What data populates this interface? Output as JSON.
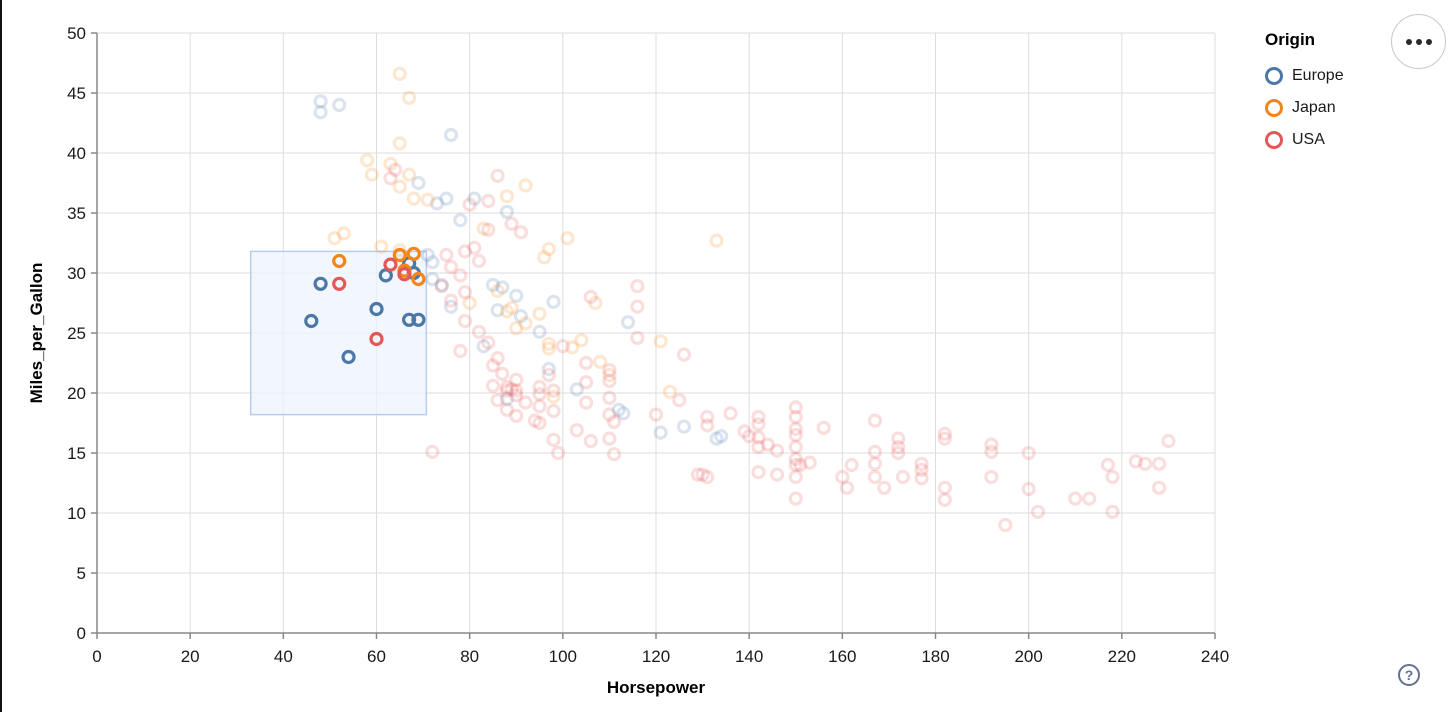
{
  "legend": {
    "title": "Origin",
    "items": [
      {
        "label": "Europe",
        "color": "#4c78a8"
      },
      {
        "label": "Japan",
        "color": "#f58518"
      },
      {
        "label": "USA",
        "color": "#e45756"
      }
    ]
  },
  "controls": {
    "menu_button": {
      "icon": "ellipsis-menu"
    },
    "help_button": {
      "glyph": "?"
    }
  },
  "chart_data": {
    "type": "scatter",
    "title": "",
    "xlabel": "Horsepower",
    "ylabel": "Miles_per_Gallon",
    "xlim": [
      0,
      240
    ],
    "ylim": [
      0,
      50
    ],
    "xticks": [
      0,
      20,
      40,
      60,
      80,
      100,
      120,
      140,
      160,
      180,
      200,
      220,
      240
    ],
    "yticks": [
      0,
      5,
      10,
      15,
      20,
      25,
      30,
      35,
      40,
      45,
      50
    ],
    "grid": true,
    "legend_position": "top-right",
    "point_style": "hollow-circle",
    "unselected_opacity": 0.2,
    "brush": {
      "x": [
        33,
        70.7
      ],
      "y": [
        18.2,
        31.8
      ],
      "fill": "#eef3fc",
      "fill_opacity": 0.75,
      "stroke": "#b9cdf0"
    },
    "series": [
      {
        "name": "Europe",
        "color": "#4c78a8",
        "selected": [
          [
            46,
            26
          ],
          [
            48,
            29.1
          ],
          [
            54,
            23
          ],
          [
            60,
            27
          ],
          [
            62,
            29.8
          ],
          [
            67,
            30.8
          ],
          [
            68,
            30
          ],
          [
            67,
            26.1
          ],
          [
            69,
            26.1
          ]
        ],
        "unselected": [
          [
            48,
            44.3
          ],
          [
            48,
            43.4
          ],
          [
            52,
            44
          ],
          [
            76,
            41.5
          ],
          [
            69,
            37.5
          ],
          [
            73,
            35.8
          ],
          [
            75,
            36.2
          ],
          [
            81,
            36.2
          ],
          [
            88,
            35.1
          ],
          [
            78,
            34.4
          ],
          [
            71,
            31.5
          ],
          [
            72,
            30.9
          ],
          [
            72,
            29.5
          ],
          [
            74,
            29
          ],
          [
            85,
            29
          ],
          [
            87,
            28.8
          ],
          [
            90,
            28.1
          ],
          [
            91,
            26.4
          ],
          [
            86,
            26.9
          ],
          [
            95,
            25.1
          ],
          [
            83,
            23.9
          ],
          [
            97,
            22
          ],
          [
            103,
            20.3
          ],
          [
            88,
            19.5
          ],
          [
            112,
            18.6
          ],
          [
            113,
            18.3
          ],
          [
            114,
            25.9
          ],
          [
            121,
            16.7
          ],
          [
            126,
            17.2
          ],
          [
            133,
            16.2
          ],
          [
            134,
            16.4
          ],
          [
            76,
            27.2
          ],
          [
            98,
            27.6
          ]
        ]
      },
      {
        "name": "Japan",
        "color": "#f58518",
        "selected": [
          [
            52,
            31
          ],
          [
            65,
            31.5
          ],
          [
            68,
            31.6
          ],
          [
            66,
            30.2
          ],
          [
            69,
            29.5
          ]
        ],
        "unselected": [
          [
            65,
            46.6
          ],
          [
            67,
            44.6
          ],
          [
            65,
            40.8
          ],
          [
            58,
            39.4
          ],
          [
            59,
            38.2
          ],
          [
            63,
            39.1
          ],
          [
            65,
            37.2
          ],
          [
            67,
            38.2
          ],
          [
            68,
            36.2
          ],
          [
            71,
            36.1
          ],
          [
            88,
            36.4
          ],
          [
            92,
            37.3
          ],
          [
            83,
            33.7
          ],
          [
            51,
            32.9
          ],
          [
            53,
            33.3
          ],
          [
            61,
            32.2
          ],
          [
            65,
            31.9
          ],
          [
            96,
            31.3
          ],
          [
            101,
            32.9
          ],
          [
            97,
            32
          ],
          [
            133,
            32.7
          ],
          [
            80,
            27.5
          ],
          [
            88,
            26.8
          ],
          [
            92,
            25.8
          ],
          [
            97,
            24.1
          ],
          [
            97,
            23.7
          ],
          [
            104,
            24.4
          ],
          [
            107,
            27.5
          ],
          [
            110,
            21.5
          ],
          [
            121,
            24.3
          ],
          [
            123,
            20.1
          ],
          [
            98,
            19.7
          ],
          [
            86,
            28.5
          ],
          [
            89,
            27.1
          ],
          [
            90,
            25.4
          ],
          [
            95,
            26.6
          ],
          [
            102,
            23.8
          ],
          [
            108,
            22.6
          ]
        ]
      },
      {
        "name": "USA",
        "color": "#e45756",
        "selected": [
          [
            52,
            29.1
          ],
          [
            60,
            24.5
          ],
          [
            63,
            30.7
          ],
          [
            66,
            29.9
          ]
        ],
        "unselected": [
          [
            86,
            38.1
          ],
          [
            84,
            36
          ],
          [
            80,
            35.7
          ],
          [
            64,
            38.6
          ],
          [
            63,
            37.9
          ],
          [
            89,
            34.1
          ],
          [
            91,
            33.4
          ],
          [
            84,
            33.6
          ],
          [
            79,
            31.8
          ],
          [
            81,
            32.1
          ],
          [
            82,
            31
          ],
          [
            75,
            31.5
          ],
          [
            76,
            30.5
          ],
          [
            78,
            29.8
          ],
          [
            74,
            28.9
          ],
          [
            79,
            28.4
          ],
          [
            76,
            27.7
          ],
          [
            116,
            28.9
          ],
          [
            116,
            27.2
          ],
          [
            116,
            24.6
          ],
          [
            79,
            26
          ],
          [
            82,
            25.1
          ],
          [
            84,
            24.2
          ],
          [
            78,
            23.5
          ],
          [
            86,
            22.9
          ],
          [
            85,
            22.3
          ],
          [
            87,
            21.6
          ],
          [
            90,
            21.1
          ],
          [
            85,
            20.6
          ],
          [
            88,
            20.2
          ],
          [
            90,
            19.8
          ],
          [
            86,
            19.4
          ],
          [
            92,
            19.2
          ],
          [
            88,
            18.6
          ],
          [
            90,
            18.1
          ],
          [
            94,
            17.7
          ],
          [
            95,
            20.5
          ],
          [
            95,
            19.9
          ],
          [
            95,
            18.9
          ],
          [
            95,
            17.5
          ],
          [
            89,
            20.3
          ],
          [
            90,
            20.2
          ],
          [
            88,
            20.5
          ],
          [
            97,
            21.5
          ],
          [
            98,
            20.2
          ],
          [
            98,
            18.5
          ],
          [
            98,
            16.1
          ],
          [
            99,
            15
          ],
          [
            100,
            23.9
          ],
          [
            106,
            28
          ],
          [
            105,
            22.5
          ],
          [
            105,
            20.9
          ],
          [
            105,
            19.2
          ],
          [
            106,
            16
          ],
          [
            103,
            16.9
          ],
          [
            110,
            21.9
          ],
          [
            110,
            21
          ],
          [
            110,
            19.6
          ],
          [
            110,
            18.2
          ],
          [
            111,
            17.6
          ],
          [
            110,
            16.2
          ],
          [
            111,
            14.9
          ],
          [
            72,
            15.1
          ],
          [
            120,
            18.2
          ],
          [
            125,
            19.4
          ],
          [
            126,
            23.2
          ],
          [
            131,
            18
          ],
          [
            131,
            17.3
          ],
          [
            130,
            13.2
          ],
          [
            131,
            13
          ],
          [
            139,
            16.8
          ],
          [
            140,
            16.4
          ],
          [
            136,
            18.3
          ],
          [
            142,
            18
          ],
          [
            142,
            17.4
          ],
          [
            142,
            16.3
          ],
          [
            142,
            15.5
          ],
          [
            142,
            13.4
          ],
          [
            144,
            15.7
          ],
          [
            146,
            15.2
          ],
          [
            146,
            13.2
          ],
          [
            150,
            18.8
          ],
          [
            150,
            18
          ],
          [
            150,
            17
          ],
          [
            150,
            16.5
          ],
          [
            150,
            15.5
          ],
          [
            150,
            14.5
          ],
          [
            150,
            14
          ],
          [
            151,
            14
          ],
          [
            150,
            13
          ],
          [
            150,
            11.2
          ],
          [
            156,
            17.1
          ],
          [
            153,
            14.2
          ],
          [
            160,
            13
          ],
          [
            162,
            14
          ],
          [
            161,
            12.1
          ],
          [
            167,
            17.7
          ],
          [
            167,
            15.1
          ],
          [
            167,
            14.1
          ],
          [
            167,
            13
          ],
          [
            172,
            16.2
          ],
          [
            172,
            15.5
          ],
          [
            172,
            15
          ],
          [
            169,
            12.1
          ],
          [
            173,
            13
          ],
          [
            177,
            14.1
          ],
          [
            177,
            13.6
          ],
          [
            177,
            12.9
          ],
          [
            182,
            16.6
          ],
          [
            182,
            16.2
          ],
          [
            182,
            12.1
          ],
          [
            182,
            11.1
          ],
          [
            192,
            15.7
          ],
          [
            192,
            15.1
          ],
          [
            192,
            13
          ],
          [
            200,
            15
          ],
          [
            200,
            12
          ],
          [
            202,
            10.1
          ],
          [
            195,
            9
          ],
          [
            210,
            11.2
          ],
          [
            213,
            11.2
          ],
          [
            217,
            14
          ],
          [
            218,
            13
          ],
          [
            218,
            10.1
          ],
          [
            223,
            14.3
          ],
          [
            225,
            14.1
          ],
          [
            228,
            14.1
          ],
          [
            228,
            12.1
          ],
          [
            230,
            16
          ],
          [
            129,
            13.2
          ]
        ]
      }
    ]
  }
}
